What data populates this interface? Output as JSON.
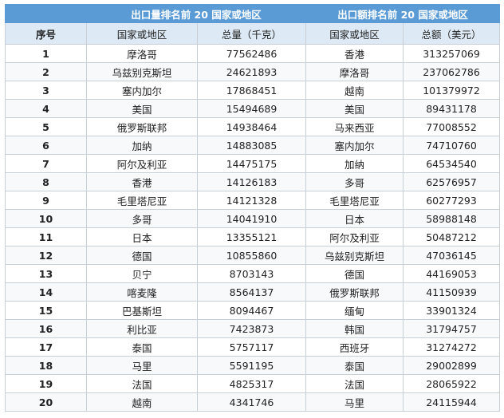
{
  "table": {
    "groups": [
      "出口量排名前 20 国家或地区",
      "出口额排名前 20 国家或地区"
    ],
    "columns": [
      "序号",
      "国家或地区",
      "总量（千克）",
      "国家或地区",
      "总额（美元）"
    ],
    "rows": [
      [
        "1",
        "摩洛哥",
        "77562486",
        "香港",
        "313257069"
      ],
      [
        "2",
        "乌兹别克斯坦",
        "24621893",
        "摩洛哥",
        "237062786"
      ],
      [
        "3",
        "塞内加尔",
        "17868451",
        "越南",
        "101379972"
      ],
      [
        "4",
        "美国",
        "15494689",
        "美国",
        "89431178"
      ],
      [
        "5",
        "俄罗斯联邦",
        "14938464",
        "马来西亚",
        "77008552"
      ],
      [
        "6",
        "加纳",
        "14883085",
        "塞内加尔",
        "74710760"
      ],
      [
        "7",
        "阿尔及利亚",
        "14475175",
        "加纳",
        "64534540"
      ],
      [
        "8",
        "香港",
        "14126183",
        "多哥",
        "62576957"
      ],
      [
        "9",
        "毛里塔尼亚",
        "14121328",
        "毛里塔尼亚",
        "60277293"
      ],
      [
        "10",
        "多哥",
        "14041910",
        "日本",
        "58988148"
      ],
      [
        "11",
        "日本",
        "13355121",
        "阿尔及利亚",
        "50487212"
      ],
      [
        "12",
        "德国",
        "10855860",
        "乌兹别克斯坦",
        "47036145"
      ],
      [
        "13",
        "贝宁",
        "8703143",
        "德国",
        "44169053"
      ],
      [
        "14",
        "喀麦隆",
        "8564137",
        "俄罗斯联邦",
        "41150939"
      ],
      [
        "15",
        "巴基斯坦",
        "8094467",
        "缅甸",
        "33901324"
      ],
      [
        "16",
        "利比亚",
        "7423873",
        "韩国",
        "31794757"
      ],
      [
        "17",
        "泰国",
        "5757117",
        "西班牙",
        "31274272"
      ],
      [
        "18",
        "马里",
        "5591195",
        "泰国",
        "29002899"
      ],
      [
        "19",
        "法国",
        "4825317",
        "法国",
        "28065922"
      ],
      [
        "20",
        "越南",
        "4341746",
        "马里",
        "24115944"
      ]
    ]
  }
}
